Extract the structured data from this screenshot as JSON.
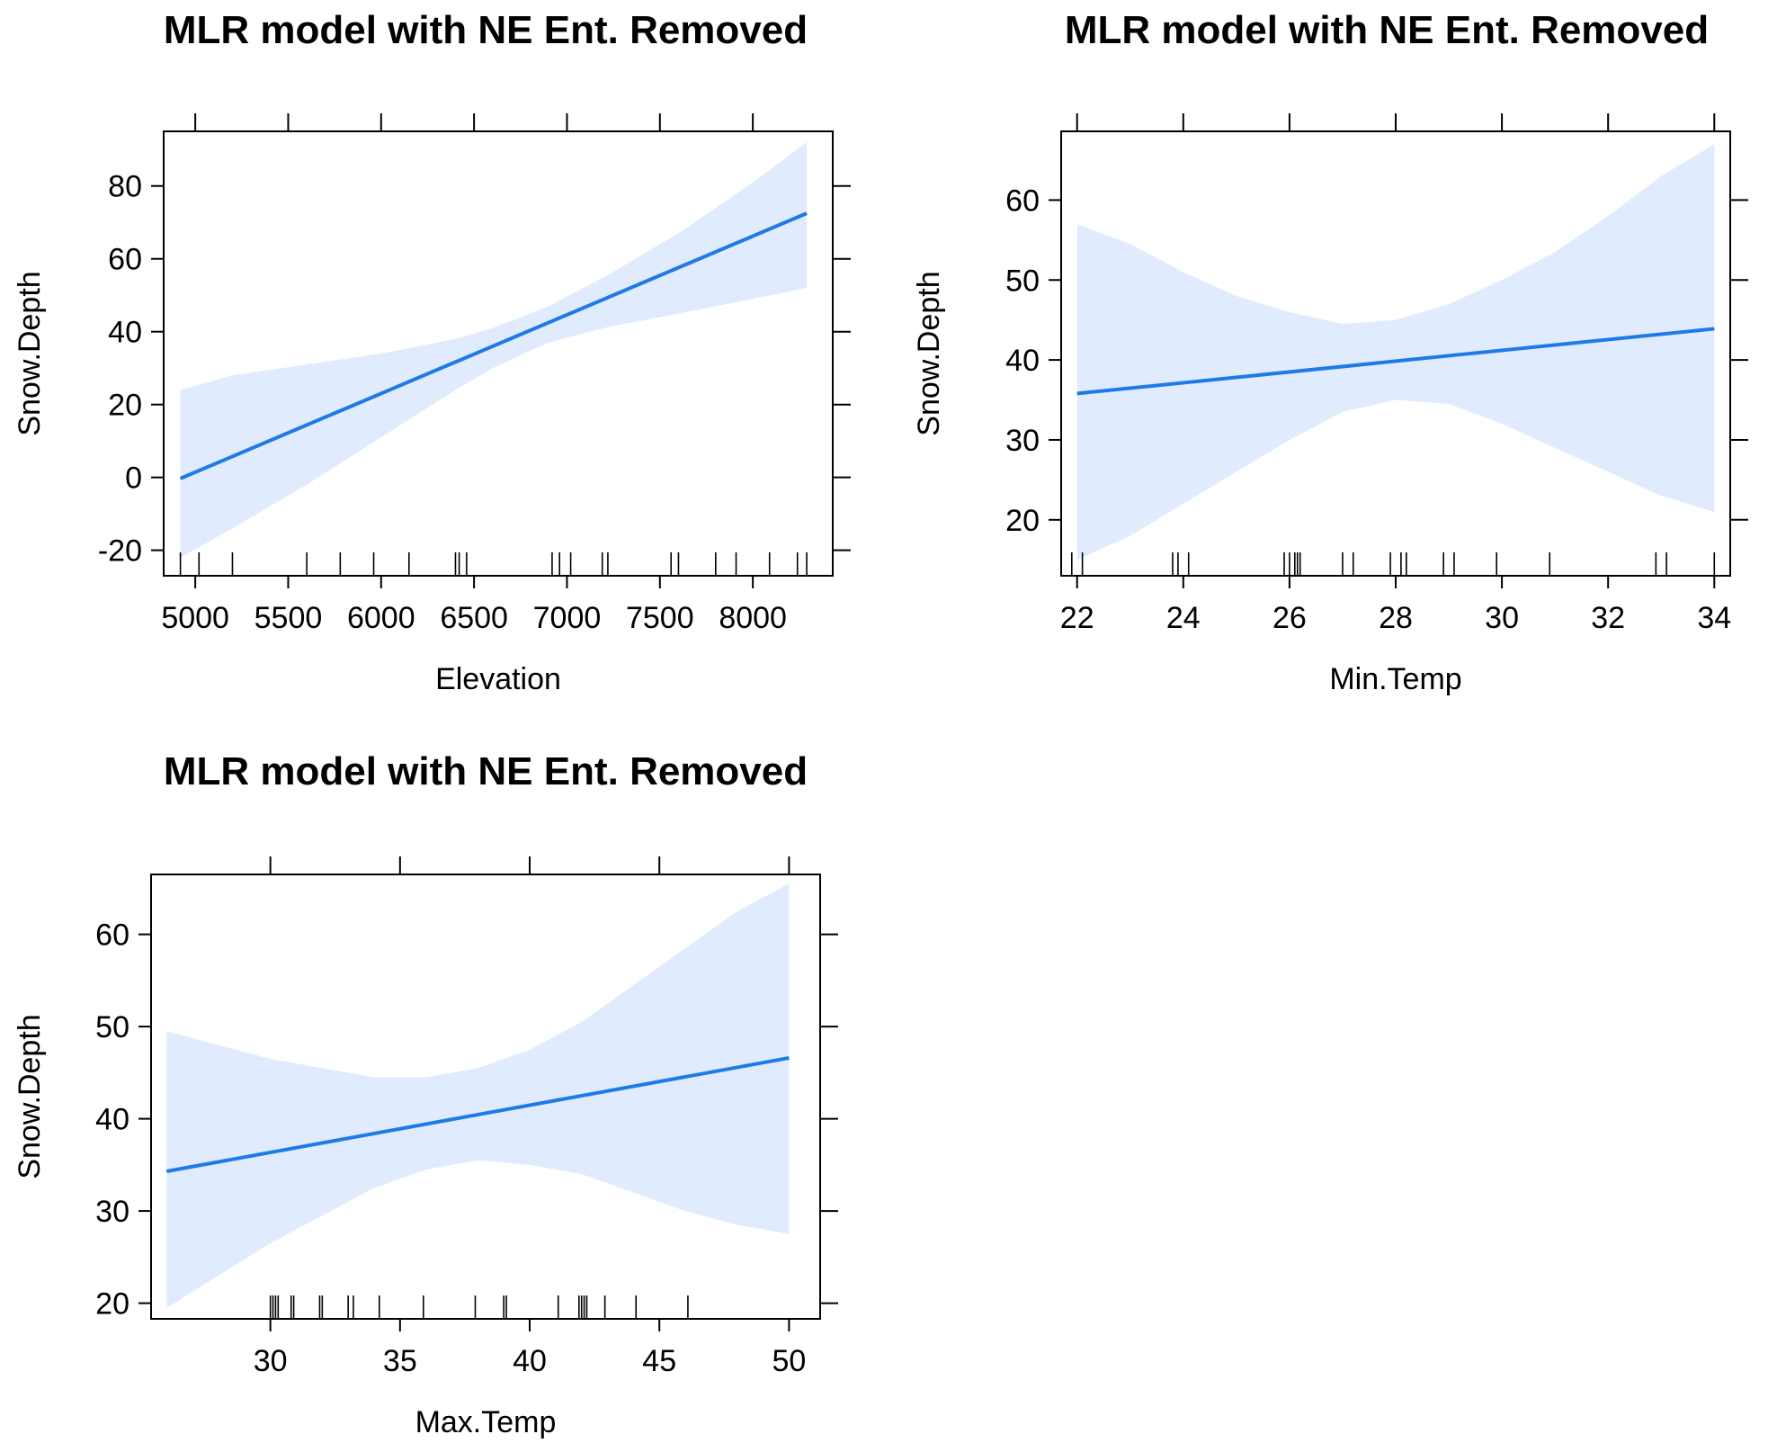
{
  "colors": {
    "fit_line": "#1f7ae8",
    "ci_band": "#e0ecfd",
    "axis": "#000000"
  },
  "chart_data": [
    {
      "type": "line",
      "title": "MLR model with NE Ent. Removed",
      "xlabel": "Elevation",
      "ylabel": "Snow.Depth",
      "xlim": [
        4830,
        8430
      ],
      "ylim": [
        -27,
        95
      ],
      "xticks": [
        5000,
        5500,
        6000,
        6500,
        7000,
        7500,
        8000
      ],
      "yticks": [
        -20,
        0,
        20,
        40,
        60,
        80
      ],
      "fit": {
        "x": [
          4920,
          8290
        ],
        "y": [
          -0.3,
          72.5
        ]
      },
      "ci_band": {
        "x": [
          4920,
          5200,
          5600,
          6000,
          6400,
          6600,
          6900,
          7200,
          7600,
          8000,
          8290
        ],
        "lower": [
          -22,
          -14,
          -2,
          11,
          24,
          30,
          37,
          41,
          45,
          49,
          52
        ],
        "upper": [
          24,
          28,
          31,
          34,
          38,
          41,
          47,
          55,
          67,
          81,
          92
        ]
      },
      "rug": [
        4920,
        5020,
        5200,
        5600,
        5780,
        5960,
        6150,
        6400,
        6420,
        6460,
        6920,
        6960,
        7020,
        7190,
        7220,
        7560,
        7600,
        7800,
        7910,
        8090,
        8240,
        8290
      ]
    },
    {
      "type": "line",
      "title": "MLR model with NE Ent. Removed",
      "xlabel": "Min.Temp",
      "ylabel": "Snow.Depth",
      "xlim": [
        21.7,
        34.3
      ],
      "ylim": [
        13,
        68.6
      ],
      "xticks": [
        22,
        24,
        26,
        28,
        30,
        32,
        34
      ],
      "yticks": [
        20,
        30,
        40,
        50,
        60
      ],
      "fit": {
        "x": [
          22,
          34
        ],
        "y": [
          35.8,
          43.9
        ]
      },
      "ci_band": {
        "x": [
          22,
          23,
          24,
          25,
          26,
          27,
          28,
          29,
          30,
          31,
          32,
          33,
          34
        ],
        "lower": [
          15,
          18,
          22,
          26,
          30,
          33.5,
          35,
          34.5,
          32,
          29,
          26,
          23,
          21
        ],
        "upper": [
          57,
          54.5,
          51,
          48,
          46,
          44.5,
          45,
          47,
          50,
          53.5,
          58,
          63,
          67
        ]
      },
      "rug": [
        21.9,
        22.1,
        23.8,
        23.9,
        24.1,
        25.9,
        26.0,
        26.1,
        26.15,
        26.2,
        27.0,
        27.2,
        27.9,
        28.1,
        28.2,
        28.9,
        29.1,
        29.9,
        30.9,
        32.9,
        33.1,
        34.0
      ]
    },
    {
      "type": "line",
      "title": "MLR model with NE Ent. Removed",
      "xlabel": "Max.Temp",
      "ylabel": "Snow.Depth",
      "xlim": [
        25.4,
        51.2
      ],
      "ylim": [
        18.3,
        66.5
      ],
      "xticks": [
        30,
        35,
        40,
        45,
        50
      ],
      "yticks": [
        20,
        30,
        40,
        50,
        60
      ],
      "fit": {
        "x": [
          26,
          50
        ],
        "y": [
          34.3,
          46.6
        ]
      },
      "ci_band": {
        "x": [
          26,
          28,
          30,
          32,
          34,
          36,
          38,
          40,
          42,
          44,
          46,
          48,
          50
        ],
        "lower": [
          19.5,
          23,
          26.5,
          29.5,
          32.5,
          34.5,
          35.5,
          35,
          34,
          32,
          30,
          28.5,
          27.5
        ],
        "upper": [
          49.5,
          48,
          46.5,
          45.5,
          44.5,
          44.5,
          45.5,
          47.5,
          50.5,
          54.5,
          58.5,
          62.5,
          65.5
        ]
      },
      "rug": [
        30.0,
        30.1,
        30.2,
        30.3,
        30.8,
        30.9,
        31.9,
        32.0,
        33.0,
        33.2,
        34.2,
        35.9,
        37.9,
        39.0,
        39.1,
        41.1,
        41.9,
        42.0,
        42.1,
        42.2,
        42.9,
        44.1,
        46.1
      ]
    }
  ]
}
